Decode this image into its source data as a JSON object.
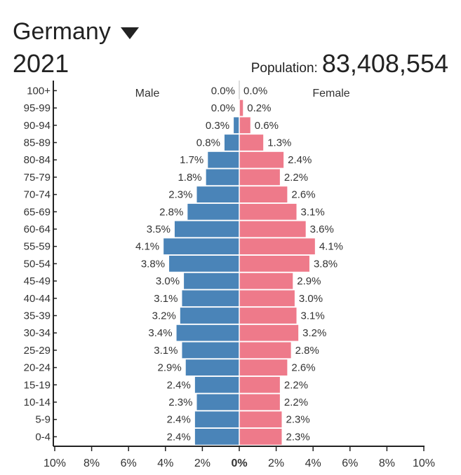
{
  "header": {
    "country": "Germany",
    "year": "2021",
    "population_label": "Population:",
    "population_value": "83,408,554"
  },
  "colors": {
    "male": "#4a84b8",
    "female": "#ee7a8a",
    "axis": "#222222",
    "text": "#333333"
  },
  "chart_data": {
    "type": "bar",
    "orientation": "horizontal-pyramid",
    "categories": [
      "100+",
      "95-99",
      "90-94",
      "85-89",
      "80-84",
      "75-79",
      "70-74",
      "65-69",
      "60-64",
      "55-59",
      "50-54",
      "45-49",
      "40-44",
      "35-39",
      "30-34",
      "25-29",
      "20-24",
      "15-19",
      "10-14",
      "5-9",
      "0-4"
    ],
    "series": [
      {
        "name": "Male",
        "values": [
          0.0,
          0.0,
          0.3,
          0.8,
          1.7,
          1.8,
          2.3,
          2.8,
          3.5,
          4.1,
          3.8,
          3.0,
          3.1,
          3.2,
          3.4,
          3.1,
          2.9,
          2.4,
          2.3,
          2.4,
          2.4
        ],
        "labels": [
          "0.0%",
          "0.0%",
          "0.3%",
          "0.8%",
          "1.7%",
          "1.8%",
          "2.3%",
          "2.8%",
          "3.5%",
          "4.1%",
          "3.8%",
          "3.0%",
          "3.1%",
          "3.2%",
          "3.4%",
          "3.1%",
          "2.9%",
          "2.4%",
          "2.3%",
          "2.4%",
          "2.4%"
        ]
      },
      {
        "name": "Female",
        "values": [
          0.0,
          0.2,
          0.6,
          1.3,
          2.4,
          2.2,
          2.6,
          3.1,
          3.6,
          4.1,
          3.8,
          2.9,
          3.0,
          3.1,
          3.2,
          2.8,
          2.6,
          2.2,
          2.2,
          2.3,
          2.3
        ],
        "labels": [
          "0.0%",
          "0.2%",
          "0.6%",
          "1.3%",
          "2.4%",
          "2.2%",
          "2.6%",
          "3.1%",
          "3.6%",
          "4.1%",
          "3.8%",
          "2.9%",
          "3.0%",
          "3.1%",
          "3.2%",
          "2.8%",
          "2.6%",
          "2.2%",
          "2.2%",
          "2.3%",
          "2.3%"
        ]
      }
    ],
    "xlim": [
      -10,
      10
    ],
    "x_ticks": [
      "10%",
      "8%",
      "6%",
      "4%",
      "2%",
      "0%",
      "2%",
      "4%",
      "6%",
      "8%",
      "10%"
    ],
    "grid": false
  }
}
